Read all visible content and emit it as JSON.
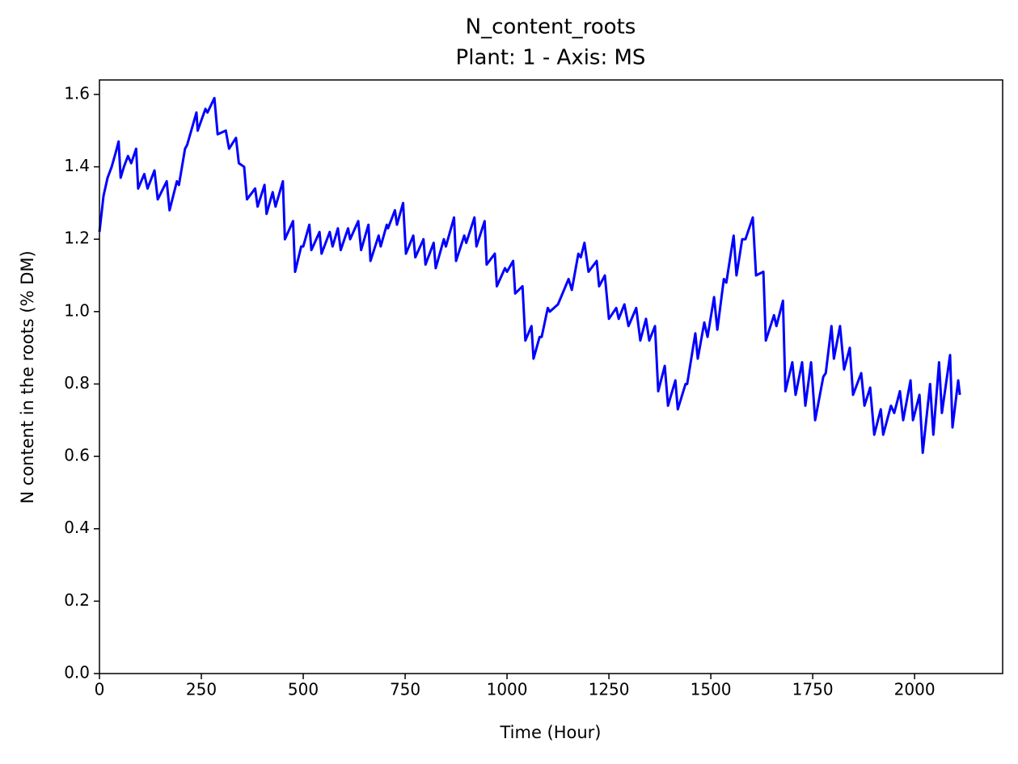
{
  "chart_data": {
    "type": "line",
    "title": "N_content_roots",
    "subtitle": "Plant: 1 - Axis: MS",
    "xlabel": "Time (Hour)",
    "ylabel": "N content in the roots (% DM)",
    "xlim": [
      0,
      2216
    ],
    "ylim": [
      0,
      1.64
    ],
    "xticks": [
      0,
      250,
      500,
      750,
      1000,
      1250,
      1500,
      1750,
      2000
    ],
    "yticks": [
      {
        "value": 0,
        "label": "0.0"
      },
      0.2,
      0.4,
      0.6,
      0.8,
      {
        "value": 1,
        "label": "1.0"
      },
      1.2,
      1.4,
      1.6
    ],
    "series": [
      {
        "color": "#0000ff",
        "x": [
          0,
          10,
          20,
          30,
          40,
          47,
          52,
          60,
          70,
          78,
          90,
          95,
          110,
          118,
          135,
          143,
          165,
          172,
          190,
          195,
          210,
          215,
          238,
          241,
          260,
          265,
          282,
          290,
          310,
          318,
          335,
          342,
          355,
          362,
          382,
          388,
          405,
          410,
          425,
          432,
          450,
          455,
          475,
          480,
          495,
          500,
          515,
          520,
          540,
          545,
          565,
          572,
          585,
          592,
          610,
          615,
          635,
          642,
          660,
          665,
          685,
          690,
          705,
          708,
          725,
          730,
          745,
          752,
          770,
          775,
          795,
          800,
          820,
          825,
          845,
          850,
          870,
          875,
          895,
          900,
          920,
          925,
          945,
          950,
          970,
          975,
          995,
          1000,
          1015,
          1020,
          1038,
          1045,
          1060,
          1065,
          1080,
          1085,
          1100,
          1105,
          1125,
          1151,
          1159,
          1175,
          1181,
          1190,
          1200,
          1220,
          1226,
          1240,
          1250,
          1268,
          1274,
          1288,
          1298,
          1317,
          1327,
          1341,
          1349,
          1363,
          1371,
          1387,
          1395,
          1413,
          1419,
          1438,
          1442,
          1462,
          1468,
          1484,
          1492,
          1508,
          1516,
          1532,
          1538,
          1556,
          1563,
          1577,
          1585,
          1603,
          1611,
          1629,
          1635,
          1655,
          1661,
          1677,
          1683,
          1700,
          1708,
          1724,
          1732,
          1746,
          1756,
          1776,
          1782,
          1796,
          1802,
          1817,
          1827,
          1841,
          1849,
          1869,
          1877,
          1891,
          1901,
          1917,
          1923,
          1942,
          1950,
          1964,
          1972,
          1990,
          1996,
          2012,
          2020,
          2038,
          2046,
          2060,
          2067,
          2087,
          2093,
          2107,
          2111
        ],
        "values": [
          1.22,
          1.32,
          1.37,
          1.4,
          1.44,
          1.47,
          1.37,
          1.4,
          1.43,
          1.41,
          1.45,
          1.34,
          1.38,
          1.34,
          1.39,
          1.31,
          1.36,
          1.28,
          1.36,
          1.35,
          1.45,
          1.46,
          1.55,
          1.5,
          1.56,
          1.55,
          1.59,
          1.49,
          1.5,
          1.45,
          1.48,
          1.41,
          1.4,
          1.31,
          1.34,
          1.29,
          1.35,
          1.27,
          1.33,
          1.29,
          1.36,
          1.2,
          1.25,
          1.11,
          1.18,
          1.18,
          1.24,
          1.17,
          1.22,
          1.16,
          1.22,
          1.18,
          1.23,
          1.17,
          1.23,
          1.2,
          1.25,
          1.17,
          1.24,
          1.14,
          1.21,
          1.18,
          1.24,
          1.23,
          1.28,
          1.24,
          1.3,
          1.16,
          1.21,
          1.15,
          1.2,
          1.13,
          1.19,
          1.12,
          1.2,
          1.18,
          1.26,
          1.14,
          1.21,
          1.19,
          1.26,
          1.18,
          1.25,
          1.13,
          1.16,
          1.07,
          1.12,
          1.11,
          1.14,
          1.05,
          1.07,
          0.92,
          0.96,
          0.87,
          0.93,
          0.93,
          1.01,
          1.0,
          1.02,
          1.09,
          1.06,
          1.16,
          1.15,
          1.19,
          1.11,
          1.14,
          1.07,
          1.1,
          0.98,
          1.01,
          0.98,
          1.02,
          0.96,
          1.01,
          0.92,
          0.98,
          0.92,
          0.96,
          0.78,
          0.85,
          0.74,
          0.81,
          0.73,
          0.8,
          0.8,
          0.94,
          0.87,
          0.97,
          0.93,
          1.04,
          0.95,
          1.09,
          1.08,
          1.21,
          1.1,
          1.2,
          1.2,
          1.26,
          1.1,
          1.11,
          0.92,
          0.99,
          0.96,
          1.03,
          0.78,
          0.86,
          0.77,
          0.86,
          0.74,
          0.86,
          0.7,
          0.82,
          0.83,
          0.96,
          0.87,
          0.96,
          0.84,
          0.9,
          0.77,
          0.83,
          0.74,
          0.79,
          0.66,
          0.73,
          0.66,
          0.74,
          0.72,
          0.78,
          0.7,
          0.81,
          0.7,
          0.77,
          0.61,
          0.8,
          0.66,
          0.86,
          0.72,
          0.88,
          0.68,
          0.81,
          0.77
        ]
      }
    ]
  }
}
